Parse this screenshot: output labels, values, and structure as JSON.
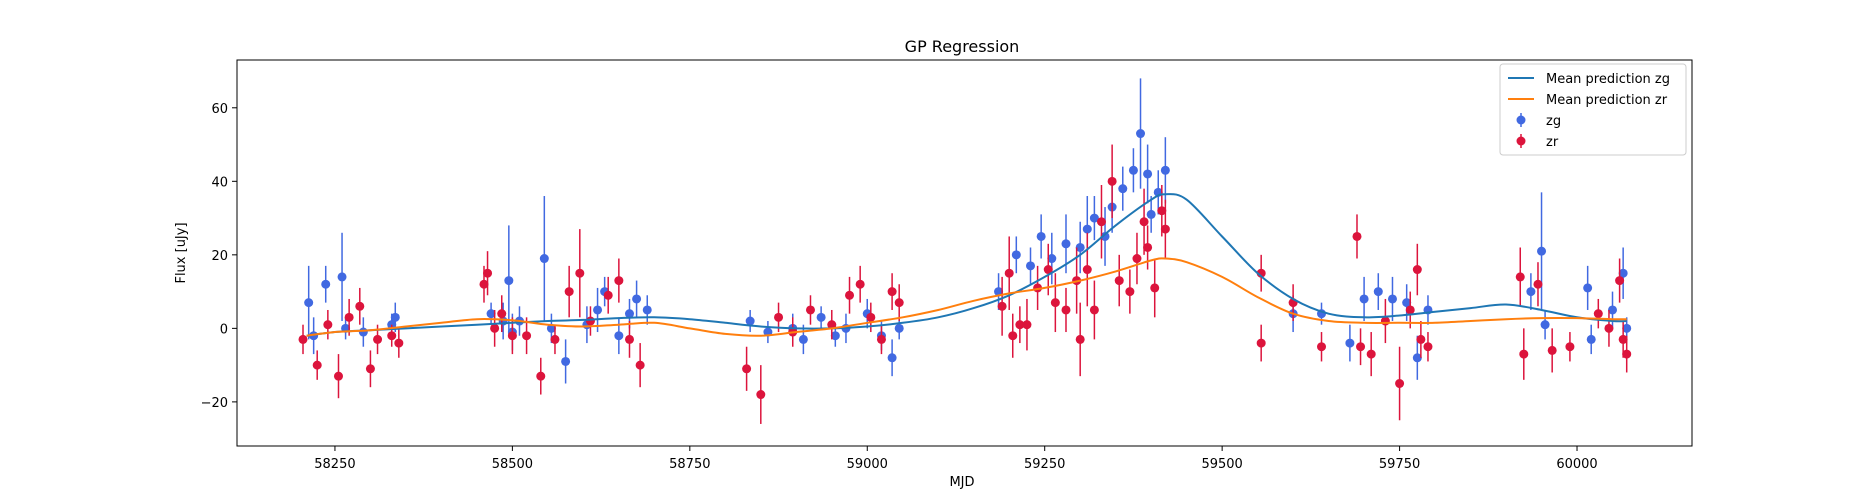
{
  "chart_data": {
    "type": "scatter",
    "title": "GP Regression",
    "xlabel": "MJD",
    "ylabel": "Flux [uJy]",
    "xlim": [
      58112,
      60162
    ],
    "ylim": [
      -32,
      73
    ],
    "xticks": [
      58250,
      58500,
      58750,
      59000,
      59250,
      59500,
      59750,
      60000
    ],
    "yticks": [
      -20,
      0,
      20,
      40,
      60
    ],
    "grid": false,
    "legend_position": "top-right",
    "legend": {
      "entries": [
        {
          "label": "Mean prediction zg",
          "kind": "line",
          "color": "#1f77b4"
        },
        {
          "label": "Mean prediction zr",
          "kind": "line",
          "color": "#ff7f0e"
        },
        {
          "label": "zg",
          "kind": "errorpoint",
          "color": "#4169e1"
        },
        {
          "label": "zr",
          "kind": "errorpoint",
          "color": "#dc143c"
        }
      ]
    },
    "lines": [
      {
        "name": "Mean prediction zg",
        "color": "#1f77b4",
        "points": [
          [
            58210,
            -2
          ],
          [
            58250,
            -1
          ],
          [
            58300,
            -0.5
          ],
          [
            58350,
            0
          ],
          [
            58400,
            0.5
          ],
          [
            58450,
            1
          ],
          [
            58500,
            1.5
          ],
          [
            58550,
            2
          ],
          [
            58600,
            2.3
          ],
          [
            58650,
            2.8
          ],
          [
            58700,
            3
          ],
          [
            58750,
            2.5
          ],
          [
            58800,
            1.5
          ],
          [
            58850,
            0.5
          ],
          [
            58900,
            0
          ],
          [
            58950,
            0
          ],
          [
            59000,
            0.5
          ],
          [
            59050,
            1.5
          ],
          [
            59100,
            3
          ],
          [
            59150,
            5.5
          ],
          [
            59200,
            9
          ],
          [
            59250,
            14
          ],
          [
            59300,
            20
          ],
          [
            59350,
            28
          ],
          [
            59400,
            35
          ],
          [
            59420,
            36.5
          ],
          [
            59450,
            35
          ],
          [
            59500,
            25
          ],
          [
            59550,
            15
          ],
          [
            59600,
            8
          ],
          [
            59650,
            4
          ],
          [
            59700,
            3
          ],
          [
            59750,
            3.5
          ],
          [
            59800,
            4.5
          ],
          [
            59850,
            5.5
          ],
          [
            59900,
            6.5
          ],
          [
            59950,
            5
          ],
          [
            60000,
            3
          ],
          [
            60050,
            2
          ],
          [
            60070,
            2
          ]
        ]
      },
      {
        "name": "Mean prediction zr",
        "color": "#ff7f0e",
        "points": [
          [
            58210,
            -2
          ],
          [
            58250,
            -1
          ],
          [
            58300,
            -0.5
          ],
          [
            58350,
            0.5
          ],
          [
            58400,
            1.5
          ],
          [
            58450,
            2.5
          ],
          [
            58500,
            2.2
          ],
          [
            58550,
            1
          ],
          [
            58600,
            0.5
          ],
          [
            58650,
            1
          ],
          [
            58700,
            1.5
          ],
          [
            58750,
            0
          ],
          [
            58800,
            -1.5
          ],
          [
            58850,
            -2
          ],
          [
            58900,
            -1
          ],
          [
            58950,
            0
          ],
          [
            59000,
            1.5
          ],
          [
            59050,
            3
          ],
          [
            59100,
            5
          ],
          [
            59150,
            7.5
          ],
          [
            59200,
            9.5
          ],
          [
            59250,
            11
          ],
          [
            59300,
            13
          ],
          [
            59350,
            15.5
          ],
          [
            59400,
            18.5
          ],
          [
            59420,
            19
          ],
          [
            59450,
            18
          ],
          [
            59500,
            14
          ],
          [
            59550,
            8.5
          ],
          [
            59600,
            4
          ],
          [
            59650,
            2
          ],
          [
            59700,
            1.5
          ],
          [
            59750,
            1.5
          ],
          [
            59800,
            1.5
          ],
          [
            59850,
            2
          ],
          [
            59900,
            2.5
          ],
          [
            59950,
            2.8
          ],
          [
            60000,
            2.8
          ],
          [
            60050,
            2.5
          ],
          [
            60070,
            2.5
          ]
        ]
      }
    ],
    "series": [
      {
        "name": "zg",
        "color": "#4169e1",
        "points": [
          [
            58213,
            7,
            10
          ],
          [
            58220,
            -2,
            5
          ],
          [
            58237,
            12,
            5
          ],
          [
            58260,
            14,
            12
          ],
          [
            58265,
            0,
            3
          ],
          [
            58290,
            -1,
            4
          ],
          [
            58330,
            1,
            3
          ],
          [
            58335,
            3,
            4
          ],
          [
            58470,
            4,
            3
          ],
          [
            58487,
            2,
            5
          ],
          [
            58495,
            13,
            15
          ],
          [
            58500,
            -1,
            5
          ],
          [
            58510,
            2,
            4
          ],
          [
            58545,
            19,
            17
          ],
          [
            58555,
            0,
            4
          ],
          [
            58575,
            -9,
            6
          ],
          [
            58605,
            1,
            5
          ],
          [
            58620,
            5,
            6
          ],
          [
            58630,
            10,
            4
          ],
          [
            58650,
            -2,
            5
          ],
          [
            58665,
            4,
            4
          ],
          [
            58675,
            8,
            5
          ],
          [
            58690,
            5,
            4
          ],
          [
            58835,
            2,
            3
          ],
          [
            58860,
            -1,
            3
          ],
          [
            58895,
            0,
            4
          ],
          [
            58910,
            -3,
            4
          ],
          [
            58935,
            3,
            3
          ],
          [
            58955,
            -2,
            3
          ],
          [
            58970,
            0,
            4
          ],
          [
            59000,
            4,
            4
          ],
          [
            59020,
            -2,
            4
          ],
          [
            59035,
            -8,
            5
          ],
          [
            59045,
            0,
            3
          ],
          [
            59185,
            10,
            5
          ],
          [
            59210,
            20,
            5
          ],
          [
            59230,
            17,
            5
          ],
          [
            59245,
            25,
            6
          ],
          [
            59260,
            19,
            7
          ],
          [
            59280,
            23,
            8
          ],
          [
            59300,
            22,
            7
          ],
          [
            59310,
            27,
            9
          ],
          [
            59320,
            30,
            6
          ],
          [
            59335,
            25,
            8
          ],
          [
            59345,
            33,
            7
          ],
          [
            59360,
            38,
            6
          ],
          [
            59375,
            43,
            6
          ],
          [
            59385,
            53,
            15
          ],
          [
            59395,
            42,
            8
          ],
          [
            59410,
            37,
            6
          ],
          [
            59420,
            43,
            9
          ],
          [
            59400,
            31,
            5
          ],
          [
            59600,
            4,
            5
          ],
          [
            59640,
            4,
            3
          ],
          [
            59680,
            -4,
            5
          ],
          [
            59700,
            8,
            6
          ],
          [
            59720,
            10,
            5
          ],
          [
            59740,
            8,
            6
          ],
          [
            59760,
            7,
            5
          ],
          [
            59775,
            -8,
            6
          ],
          [
            59790,
            5,
            4
          ],
          [
            59935,
            10,
            5
          ],
          [
            59950,
            21,
            16
          ],
          [
            59955,
            1,
            4
          ],
          [
            60015,
            11,
            6
          ],
          [
            60020,
            -3,
            4
          ],
          [
            60050,
            5,
            5
          ],
          [
            60065,
            15,
            7
          ],
          [
            60070,
            0,
            3
          ]
        ]
      },
      {
        "name": "zr",
        "color": "#dc143c",
        "points": [
          [
            58205,
            -3,
            4
          ],
          [
            58225,
            -10,
            4
          ],
          [
            58240,
            1,
            4
          ],
          [
            58255,
            -13,
            6
          ],
          [
            58270,
            3,
            5
          ],
          [
            58285,
            6,
            5
          ],
          [
            58300,
            -11,
            5
          ],
          [
            58310,
            -3,
            4
          ],
          [
            58330,
            -2,
            3
          ],
          [
            58340,
            -4,
            4
          ],
          [
            58460,
            12,
            5
          ],
          [
            58465,
            15,
            6
          ],
          [
            58475,
            0,
            5
          ],
          [
            58485,
            4,
            5
          ],
          [
            58500,
            -2,
            5
          ],
          [
            58520,
            -2,
            5
          ],
          [
            58540,
            -13,
            5
          ],
          [
            58560,
            -3,
            4
          ],
          [
            58580,
            10,
            7
          ],
          [
            58595,
            15,
            12
          ],
          [
            58610,
            2,
            4
          ],
          [
            58635,
            9,
            5
          ],
          [
            58650,
            13,
            6
          ],
          [
            58665,
            -3,
            5
          ],
          [
            58680,
            -10,
            6
          ],
          [
            58830,
            -11,
            6
          ],
          [
            58850,
            -18,
            8
          ],
          [
            58875,
            3,
            4
          ],
          [
            58895,
            -1,
            4
          ],
          [
            58920,
            5,
            4
          ],
          [
            58950,
            1,
            4
          ],
          [
            58975,
            9,
            5
          ],
          [
            58990,
            12,
            5
          ],
          [
            59005,
            3,
            4
          ],
          [
            59020,
            -3,
            4
          ],
          [
            59035,
            10,
            5
          ],
          [
            59045,
            7,
            5
          ],
          [
            59190,
            6,
            8
          ],
          [
            59200,
            15,
            10
          ],
          [
            59205,
            -2,
            6
          ],
          [
            59215,
            1,
            5
          ],
          [
            59225,
            1,
            7
          ],
          [
            59240,
            11,
            6
          ],
          [
            59255,
            16,
            7
          ],
          [
            59265,
            7,
            8
          ],
          [
            59280,
            5,
            6
          ],
          [
            59295,
            13,
            9
          ],
          [
            59300,
            -3,
            10
          ],
          [
            59310,
            16,
            10
          ],
          [
            59320,
            5,
            8
          ],
          [
            59330,
            29,
            10
          ],
          [
            59345,
            40,
            10
          ],
          [
            59355,
            13,
            7
          ],
          [
            59370,
            10,
            6
          ],
          [
            59380,
            19,
            7
          ],
          [
            59390,
            29,
            9
          ],
          [
            59395,
            22,
            6
          ],
          [
            59405,
            11,
            8
          ],
          [
            59415,
            32,
            7
          ],
          [
            59420,
            27,
            8
          ],
          [
            59555,
            15,
            5
          ],
          [
            59555,
            -4,
            5
          ],
          [
            59600,
            7,
            5
          ],
          [
            59640,
            -5,
            4
          ],
          [
            59690,
            25,
            6
          ],
          [
            59695,
            -5,
            5
          ],
          [
            59710,
            -7,
            6
          ],
          [
            59730,
            2,
            6
          ],
          [
            59750,
            -15,
            10
          ],
          [
            59765,
            5,
            5
          ],
          [
            59775,
            16,
            7
          ],
          [
            59780,
            -3,
            5
          ],
          [
            59790,
            -5,
            4
          ],
          [
            59920,
            14,
            8
          ],
          [
            59925,
            -7,
            7
          ],
          [
            59945,
            12,
            6
          ],
          [
            59965,
            -6,
            6
          ],
          [
            59990,
            -5,
            4
          ],
          [
            60030,
            4,
            4
          ],
          [
            60045,
            0,
            5
          ],
          [
            60060,
            13,
            6
          ],
          [
            60065,
            -3,
            5
          ],
          [
            60070,
            -7,
            5
          ]
        ]
      }
    ]
  }
}
